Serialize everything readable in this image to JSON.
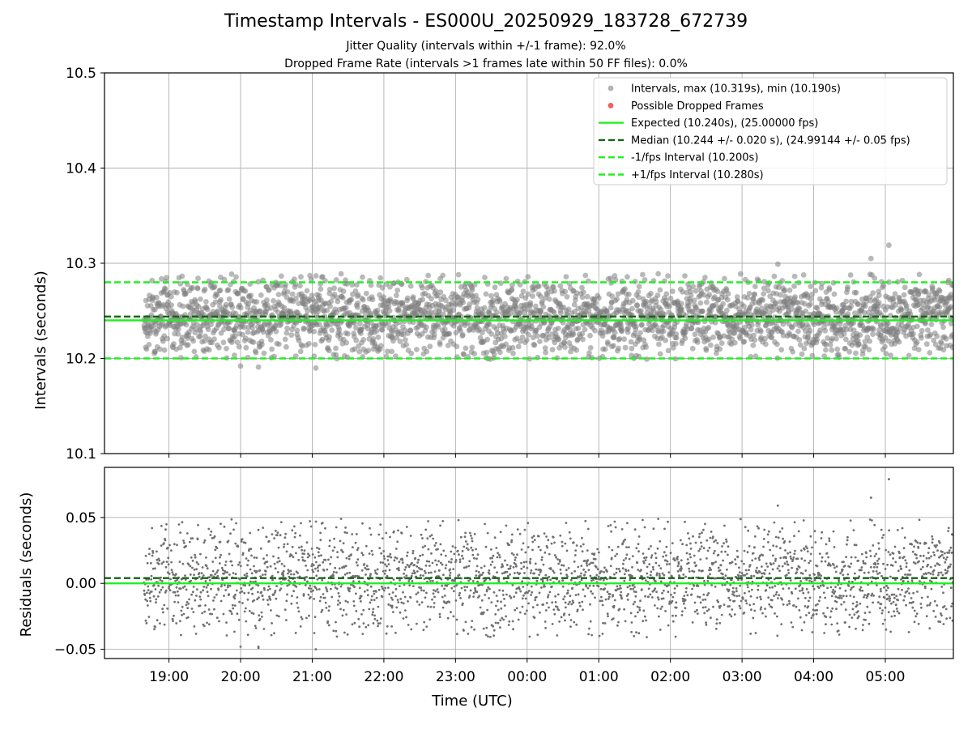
{
  "chart_data": {
    "title": "Timestamp Intervals - ES000U_20250929_183728_672739",
    "subtitles": [
      "Jitter Quality (intervals within +/-1 frame): 92.0%",
      "Dropped Frame Rate (intervals >1 frames late within 50 FF files): 0.0%"
    ],
    "x_axis": {
      "label": "Time (UTC)",
      "range_hours": [
        18.1,
        29.95
      ],
      "ticks": [
        {
          "value": 19,
          "label": "19:00"
        },
        {
          "value": 20,
          "label": "20:00"
        },
        {
          "value": 21,
          "label": "21:00"
        },
        {
          "value": 22,
          "label": "22:00"
        },
        {
          "value": 23,
          "label": "23:00"
        },
        {
          "value": 24,
          "label": "00:00"
        },
        {
          "value": 25,
          "label": "01:00"
        },
        {
          "value": 26,
          "label": "02:00"
        },
        {
          "value": 27,
          "label": "03:00"
        },
        {
          "value": 28,
          "label": "04:00"
        },
        {
          "value": 29,
          "label": "05:00"
        }
      ]
    },
    "panels": [
      {
        "type": "scatter",
        "ylabel": "Intervals (seconds)",
        "ylim": [
          10.1,
          10.5
        ],
        "yticks": [
          {
            "value": 10.1,
            "label": "10.1"
          },
          {
            "value": 10.2,
            "label": "10.2"
          },
          {
            "value": 10.3,
            "label": "10.3"
          },
          {
            "value": 10.4,
            "label": "10.4"
          },
          {
            "value": 10.5,
            "label": "10.5"
          }
        ],
        "series": [
          {
            "name": "Intervals, max (10.319s), min (10.190s)",
            "type": "scatter",
            "color": "#808080",
            "x_range_hours": [
              18.65,
              29.95
            ],
            "center": 10.244,
            "std": 0.02,
            "min": 10.19,
            "max": 10.319,
            "count": 2800,
            "points": [
              [
                20.0,
                10.192
              ],
              [
                20.25,
                10.191
              ],
              [
                21.05,
                10.19
              ],
              [
                29.05,
                10.319
              ],
              [
                28.8,
                10.305
              ],
              [
                27.5,
                10.299
              ]
            ]
          },
          {
            "name": "Possible Dropped Frames",
            "type": "scatter",
            "color": "#f06060",
            "values": []
          },
          {
            "name": "Expected (10.240s), (25.00000 fps)",
            "type": "hline",
            "value": 10.24,
            "color": "#22ee22",
            "style": "solid"
          },
          {
            "name": "Median (10.244 +/- 0.020 s), (24.99144 +/- 0.05 fps)",
            "type": "hline",
            "value": 10.244,
            "color": "#116611",
            "style": "dashed"
          },
          {
            "name": "-1/fps Interval (10.200s)",
            "type": "hline",
            "value": 10.2,
            "color": "#22ee22",
            "style": "dashed"
          },
          {
            "name": "+1/fps Interval (10.280s)",
            "type": "hline",
            "value": 10.28,
            "color": "#22ee22",
            "style": "dashed"
          }
        ],
        "legend": "top-right"
      },
      {
        "type": "scatter",
        "ylabel": "Residuals (seconds)",
        "ylim": [
          -0.057,
          0.088
        ],
        "yticks": [
          {
            "value": -0.05,
            "label": "−0.05"
          },
          {
            "value": 0.0,
            "label": "0.00"
          },
          {
            "value": 0.05,
            "label": "0.05"
          }
        ],
        "series": [
          {
            "name": "Residuals",
            "type": "scatter",
            "color": "#707070",
            "center": 0.004,
            "std": 0.02,
            "count": 2800,
            "points": [
              [
                29.05,
                0.079
              ],
              [
                28.8,
                0.065
              ],
              [
                21.05,
                -0.05
              ],
              [
                20.25,
                -0.048
              ]
            ]
          },
          {
            "name": "Expected",
            "type": "hline",
            "value": 0.0,
            "color": "#22ee22",
            "style": "solid"
          },
          {
            "name": "Median",
            "type": "hline",
            "value": 0.004,
            "color": "#116611",
            "style": "dashed"
          }
        ]
      }
    ],
    "grid": true
  }
}
